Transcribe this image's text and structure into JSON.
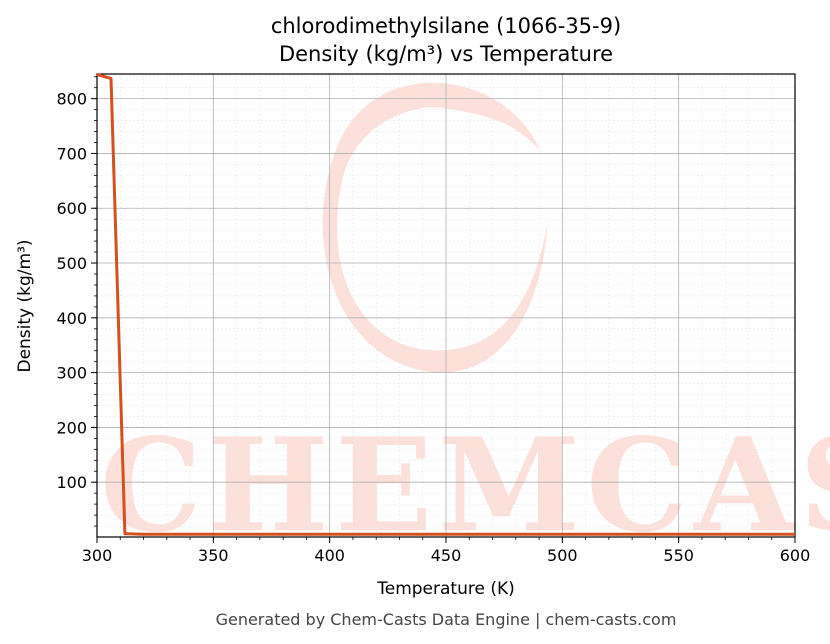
{
  "chart_data": {
    "type": "line",
    "title": "chlorodimethylsilane (1066-35-9)",
    "subtitle": "Density (kg/m³) vs Temperature",
    "xlabel": "Temperature (K)",
    "ylabel": "Density (kg/m³)",
    "xlim": [
      300,
      600
    ],
    "ylim": [
      0,
      845
    ],
    "x_ticks": [
      300,
      350,
      400,
      450,
      500,
      550,
      600
    ],
    "y_ticks": [
      100,
      200,
      300,
      400,
      500,
      600,
      700,
      800
    ],
    "grid": true,
    "series": [
      {
        "color": "#d4501e",
        "x": [
          300,
          306,
          312,
          320,
          350,
          400,
          450,
          500,
          550,
          600
        ],
        "y": [
          844,
          837,
          6,
          5,
          5,
          5,
          5,
          5,
          5,
          5
        ]
      }
    ]
  },
  "watermark": {
    "text": "CHEMCASTS",
    "color": "#fde0da"
  },
  "footer": "Generated by Chem-Casts Data Engine | chem-casts.com"
}
